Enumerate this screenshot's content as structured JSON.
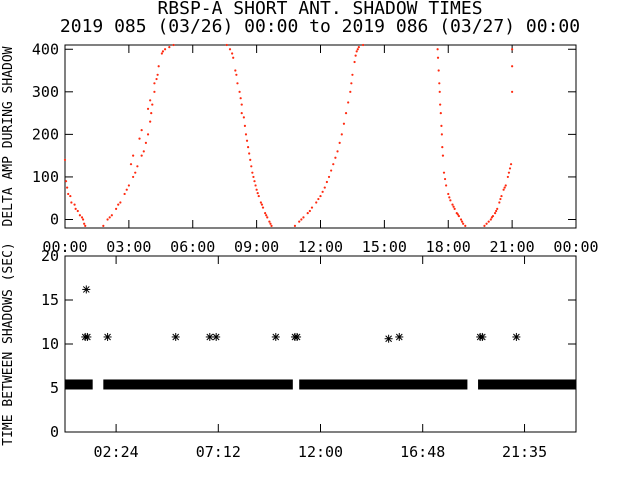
{
  "title": "RBSP-A SHORT ANT. SHADOW TIMES",
  "subtitle": "2019 085 (03/26) 00:00 to 2019 086 (03/27) 00:00",
  "colors": {
    "data": "#ff2a10",
    "axes": "#000000",
    "background": "#ffffff"
  },
  "chart_data": [
    {
      "type": "scatter",
      "panel": "top",
      "ylabel": "DELTA AMP DURING SHADOW",
      "xlim_hours": [
        0,
        24
      ],
      "ylim": [
        -20,
        410
      ],
      "x_tick_labels": [
        "00:00",
        "03:00",
        "06:00",
        "09:00",
        "12:00",
        "15:00",
        "18:00",
        "21:00",
        "00:00"
      ],
      "y_tick_labels": [
        "0",
        "100",
        "200",
        "300",
        "400"
      ],
      "y_tick_values": [
        0,
        100,
        200,
        300,
        400
      ],
      "marker": "dot",
      "series": [
        {
          "points": [
            [
              0.0,
              140
            ],
            [
              0.05,
              90
            ],
            [
              0.15,
              60
            ],
            [
              0.3,
              40
            ],
            [
              0.5,
              25
            ],
            [
              0.7,
              10
            ],
            [
              0.85,
              0
            ],
            [
              0.95,
              -15
            ],
            [
              0.1,
              75
            ],
            [
              0.25,
              55
            ],
            [
              0.45,
              35
            ],
            [
              0.6,
              20
            ],
            [
              0.8,
              5
            ],
            [
              0.9,
              -10
            ]
          ]
        },
        {
          "points": [
            [
              1.8,
              -15
            ],
            [
              2.0,
              0
            ],
            [
              2.2,
              10
            ],
            [
              2.4,
              25
            ],
            [
              2.6,
              40
            ],
            [
              2.8,
              60
            ],
            [
              3.0,
              80
            ],
            [
              3.2,
              100
            ],
            [
              3.4,
              125
            ],
            [
              3.6,
              150
            ],
            [
              3.8,
              180
            ],
            [
              3.9,
              200
            ],
            [
              4.0,
              230
            ],
            [
              4.1,
              270
            ],
            [
              4.2,
              300
            ],
            [
              4.3,
              330
            ],
            [
              4.4,
              360
            ],
            [
              4.55,
              390
            ],
            [
              4.7,
              400
            ],
            [
              4.9,
              405
            ],
            [
              5.1,
              410
            ],
            [
              2.1,
              5
            ],
            [
              2.5,
              35
            ],
            [
              2.9,
              70
            ],
            [
              3.3,
              110
            ],
            [
              3.7,
              160
            ],
            [
              4.05,
              250
            ],
            [
              4.35,
              340
            ],
            [
              4.6,
              395
            ],
            [
              3.1,
              130
            ],
            [
              3.5,
              190
            ],
            [
              3.9,
              260
            ],
            [
              4.2,
              320
            ],
            [
              3.2,
              150
            ],
            [
              3.6,
              210
            ],
            [
              4.0,
              280
            ]
          ]
        },
        {
          "points": [
            [
              7.6,
              410
            ],
            [
              7.75,
              400
            ],
            [
              7.9,
              380
            ],
            [
              8.0,
              350
            ],
            [
              8.1,
              320
            ],
            [
              8.2,
              300
            ],
            [
              8.3,
              270
            ],
            [
              8.4,
              240
            ],
            [
              8.5,
              200
            ],
            [
              8.6,
              170
            ],
            [
              8.7,
              140
            ],
            [
              8.8,
              110
            ],
            [
              8.9,
              90
            ],
            [
              9.0,
              70
            ],
            [
              9.1,
              55
            ],
            [
              9.2,
              40
            ],
            [
              9.3,
              28
            ],
            [
              9.4,
              15
            ],
            [
              9.5,
              5
            ],
            [
              9.6,
              -5
            ],
            [
              9.7,
              -15
            ],
            [
              7.85,
              390
            ],
            [
              8.05,
              340
            ],
            [
              8.25,
              285
            ],
            [
              8.45,
              220
            ],
            [
              8.65,
              155
            ],
            [
              8.85,
              100
            ],
            [
              9.05,
              62
            ],
            [
              9.25,
              35
            ],
            [
              9.45,
              10
            ],
            [
              9.65,
              -10
            ],
            [
              8.3,
              250
            ],
            [
              8.55,
              185
            ],
            [
              8.75,
              125
            ],
            [
              8.95,
              80
            ]
          ]
        },
        {
          "points": [
            [
              10.8,
              -15
            ],
            [
              11.0,
              -5
            ],
            [
              11.2,
              5
            ],
            [
              11.4,
              15
            ],
            [
              11.6,
              28
            ],
            [
              11.8,
              40
            ],
            [
              12.0,
              55
            ],
            [
              12.2,
              75
            ],
            [
              12.4,
              100
            ],
            [
              12.6,
              130
            ],
            [
              12.8,
              160
            ],
            [
              13.0,
              200
            ],
            [
              13.2,
              250
            ],
            [
              13.4,
              300
            ],
            [
              13.5,
              340
            ],
            [
              13.6,
              370
            ],
            [
              13.7,
              395
            ],
            [
              13.8,
              405
            ],
            [
              14.0,
              410
            ],
            [
              11.1,
              0
            ],
            [
              11.5,
              20
            ],
            [
              11.9,
              48
            ],
            [
              12.3,
              88
            ],
            [
              12.7,
              145
            ],
            [
              13.1,
              225
            ],
            [
              13.45,
              320
            ],
            [
              13.75,
              400
            ],
            [
              12.1,
              65
            ],
            [
              12.5,
              115
            ],
            [
              12.9,
              180
            ],
            [
              13.3,
              275
            ],
            [
              13.65,
              385
            ]
          ]
        },
        {
          "points": [
            [
              17.5,
              400
            ],
            [
              17.55,
              350
            ],
            [
              17.6,
              300
            ],
            [
              17.65,
              250
            ],
            [
              17.7,
              200
            ],
            [
              17.75,
              150
            ],
            [
              17.8,
              110
            ],
            [
              17.9,
              80
            ],
            [
              18.0,
              60
            ],
            [
              18.1,
              45
            ],
            [
              18.2,
              35
            ],
            [
              18.3,
              25
            ],
            [
              18.4,
              15
            ],
            [
              18.5,
              8
            ],
            [
              18.6,
              0
            ],
            [
              18.7,
              -10
            ],
            [
              18.8,
              -15
            ],
            [
              17.52,
              380
            ],
            [
              17.58,
              320
            ],
            [
              17.62,
              270
            ],
            [
              17.68,
              220
            ],
            [
              17.72,
              170
            ],
            [
              17.85,
              95
            ],
            [
              18.05,
              52
            ],
            [
              18.25,
              30
            ],
            [
              18.45,
              12
            ],
            [
              18.65,
              -5
            ]
          ]
        },
        {
          "points": [
            [
              19.7,
              -15
            ],
            [
              19.8,
              -10
            ],
            [
              19.9,
              -5
            ],
            [
              20.0,
              0
            ],
            [
              20.1,
              8
            ],
            [
              20.2,
              15
            ],
            [
              20.3,
              25
            ],
            [
              20.4,
              40
            ],
            [
              20.5,
              55
            ],
            [
              20.6,
              70
            ],
            [
              20.7,
              80
            ],
            [
              20.8,
              100
            ],
            [
              20.9,
              120
            ],
            [
              21.0,
              400
            ],
            [
              20.05,
              5
            ],
            [
              20.25,
              20
            ],
            [
              20.45,
              48
            ],
            [
              20.65,
              75
            ],
            [
              20.85,
              110
            ],
            [
              20.95,
              130
            ],
            [
              21.0,
              360
            ],
            [
              21.0,
              300
            ]
          ]
        }
      ]
    },
    {
      "type": "scatter",
      "panel": "bottom",
      "ylabel": "TIME BETWEEN SHADOWS (SEC)",
      "xlim_hours": [
        0,
        24
      ],
      "ylim": [
        0,
        20
      ],
      "x_tick_labels": [
        "02:24",
        "07:12",
        "12:00",
        "16:48",
        "21:35"
      ],
      "x_tick_values_hours": [
        2.4,
        7.2,
        12.0,
        16.8,
        21.583
      ],
      "y_tick_labels": [
        "0",
        "5",
        "10",
        "15",
        "20"
      ],
      "y_tick_values": [
        0,
        5,
        10,
        15,
        20
      ],
      "marker": "asterisk",
      "baseline_value": 5.4,
      "baseline_segments_hours": [
        [
          0,
          1.3
        ],
        [
          1.8,
          10.7
        ],
        [
          11.0,
          18.9
        ],
        [
          19.4,
          24
        ]
      ],
      "series": [
        {
          "points": [
            [
              1.0,
              16.2
            ],
            [
              0.95,
              10.8
            ],
            [
              1.05,
              10.8
            ],
            [
              2.0,
              10.8
            ],
            [
              5.2,
              10.8
            ],
            [
              6.8,
              10.8
            ],
            [
              7.1,
              10.8
            ],
            [
              9.9,
              10.8
            ],
            [
              10.8,
              10.8
            ],
            [
              10.9,
              10.8
            ],
            [
              15.2,
              10.6
            ],
            [
              15.7,
              10.8
            ],
            [
              19.5,
              10.8
            ],
            [
              19.6,
              10.8
            ],
            [
              21.2,
              10.8
            ]
          ]
        }
      ]
    }
  ]
}
